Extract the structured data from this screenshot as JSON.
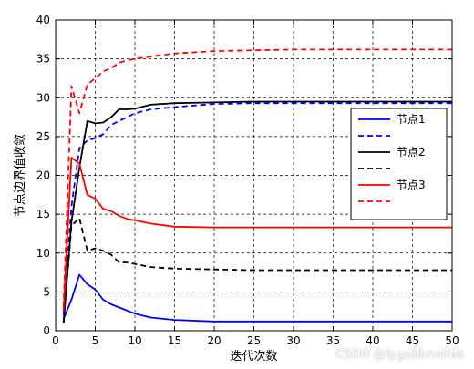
{
  "chart_data": {
    "type": "line",
    "title": "",
    "xlabel": "迭代次数",
    "ylabel": "节点边界值收敛",
    "xlim": [
      0,
      50
    ],
    "ylim": [
      0,
      40
    ],
    "xticks": [
      0,
      5,
      10,
      15,
      20,
      25,
      30,
      35,
      40,
      45,
      50
    ],
    "yticks": [
      0,
      5,
      10,
      15,
      20,
      25,
      30,
      35,
      40
    ],
    "grid": true,
    "legend_position": "right",
    "series": [
      {
        "name": "节点1",
        "color": "#0000ff",
        "style": "solid",
        "x": [
          1,
          2,
          3,
          4,
          5,
          6,
          7,
          8,
          9,
          10,
          12,
          15,
          20,
          25,
          30,
          35,
          40,
          45,
          50
        ],
        "y": [
          1.5,
          4,
          7.2,
          6,
          5.3,
          4,
          3.4,
          3,
          2.6,
          2.2,
          1.7,
          1.4,
          1.2,
          1.2,
          1.2,
          1.2,
          1.2,
          1.2,
          1.2
        ]
      },
      {
        "name": "",
        "color": "#0000ff",
        "style": "dashed",
        "x": [
          1,
          2,
          3,
          4,
          5,
          6,
          7,
          8,
          9,
          10,
          12,
          15,
          20,
          25,
          30,
          35,
          40,
          45,
          50
        ],
        "y": [
          2,
          16,
          23.5,
          24.5,
          24.8,
          25.3,
          26.5,
          27,
          27.5,
          28,
          28.5,
          28.8,
          29.2,
          29.3,
          29.3,
          29.3,
          29.3,
          29.3,
          29.3
        ]
      },
      {
        "name": "节点2",
        "color": "#000000",
        "style": "solid",
        "x": [
          1,
          2,
          3,
          4,
          5,
          6,
          7,
          8,
          9,
          10,
          12,
          15,
          20,
          25,
          30,
          35,
          40,
          45,
          50
        ],
        "y": [
          1,
          14,
          21,
          27,
          26.7,
          26.8,
          27.5,
          28.5,
          28.5,
          28.6,
          29.1,
          29.3,
          29.4,
          29.5,
          29.5,
          29.5,
          29.5,
          29.5,
          29.5
        ]
      },
      {
        "name": "",
        "color": "#000000",
        "style": "dashed",
        "x": [
          1,
          2,
          3,
          4,
          5,
          6,
          7,
          8,
          9,
          10,
          12,
          15,
          20,
          25,
          30,
          35,
          40,
          45,
          50
        ],
        "y": [
          1,
          13.5,
          14.5,
          10.3,
          10.6,
          10.3,
          9.8,
          8.8,
          8.8,
          8.6,
          8.2,
          8.0,
          7.9,
          7.8,
          7.8,
          7.8,
          7.8,
          7.8,
          7.8
        ]
      },
      {
        "name": "节点3",
        "color": "#ff0000",
        "style": "solid",
        "x": [
          1,
          2,
          3,
          4,
          5,
          6,
          7,
          8,
          9,
          10,
          12,
          15,
          20,
          25,
          30,
          35,
          40,
          45,
          50
        ],
        "y": [
          2.5,
          22.3,
          21.5,
          17.5,
          17,
          15.7,
          15.4,
          14.8,
          14.4,
          14.2,
          13.8,
          13.4,
          13.3,
          13.3,
          13.3,
          13.3,
          13.3,
          13.3,
          13.3
        ]
      },
      {
        "name": "",
        "color": "#ff0000",
        "style": "dashed",
        "x": [
          1,
          2,
          3,
          4,
          5,
          6,
          7,
          8,
          9,
          10,
          12,
          15,
          20,
          25,
          30,
          35,
          40,
          45,
          50
        ],
        "y": [
          3,
          31.5,
          28,
          31.7,
          32.5,
          33.4,
          33.8,
          34.5,
          34.8,
          35,
          35.3,
          35.7,
          36,
          36.1,
          36.2,
          36.2,
          36.2,
          36.2,
          36.2
        ]
      }
    ]
  },
  "legend": {
    "entries": [
      "节点1",
      "",
      "节点2",
      "",
      "节点3",
      ""
    ]
  },
  "watermark": "CSDN @fpga和matlab"
}
